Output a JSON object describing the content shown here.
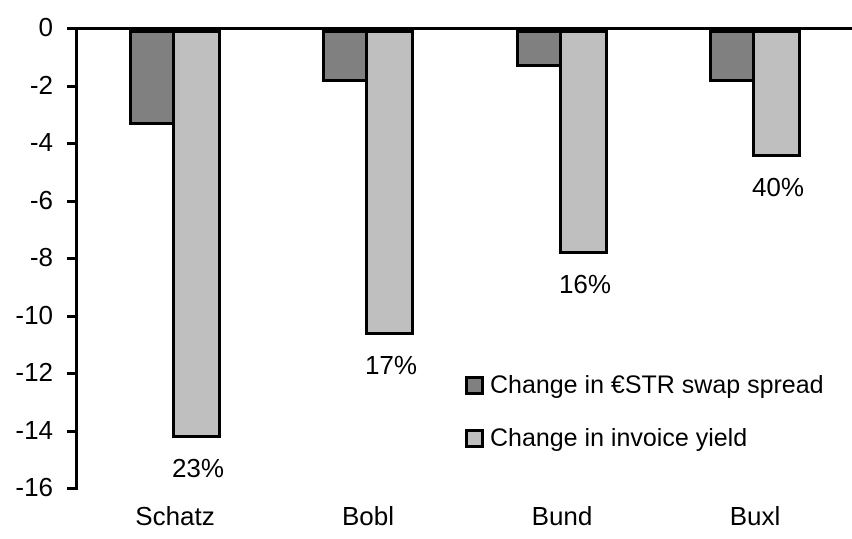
{
  "chart_data": {
    "type": "bar",
    "title": "",
    "xlabel": "",
    "ylabel": "",
    "categories": [
      "Schatz",
      "Bobl",
      "Bund",
      "Buxl"
    ],
    "series": [
      {
        "name": "Change in €STR swap spread",
        "color": "#808080",
        "values": [
          -3.3,
          -1.8,
          -1.3,
          -1.8
        ]
      },
      {
        "name": "Change in invoice yield",
        "color": "#BFBFBF",
        "values": [
          -14.2,
          -10.6,
          -7.8,
          -4.4
        ],
        "data_labels": [
          "23%",
          "17%",
          "16%",
          "40%"
        ]
      }
    ],
    "ylim": [
      -16,
      0
    ],
    "yticks": [
      0,
      -2,
      -4,
      -6,
      -8,
      -10,
      -12,
      -14,
      -16
    ],
    "grid": false,
    "legend_position": "inside-middle-right",
    "axis_color": "#000000",
    "bar_border_color": "#000000",
    "text_color": "#000000",
    "background": "#FFFFFF"
  }
}
